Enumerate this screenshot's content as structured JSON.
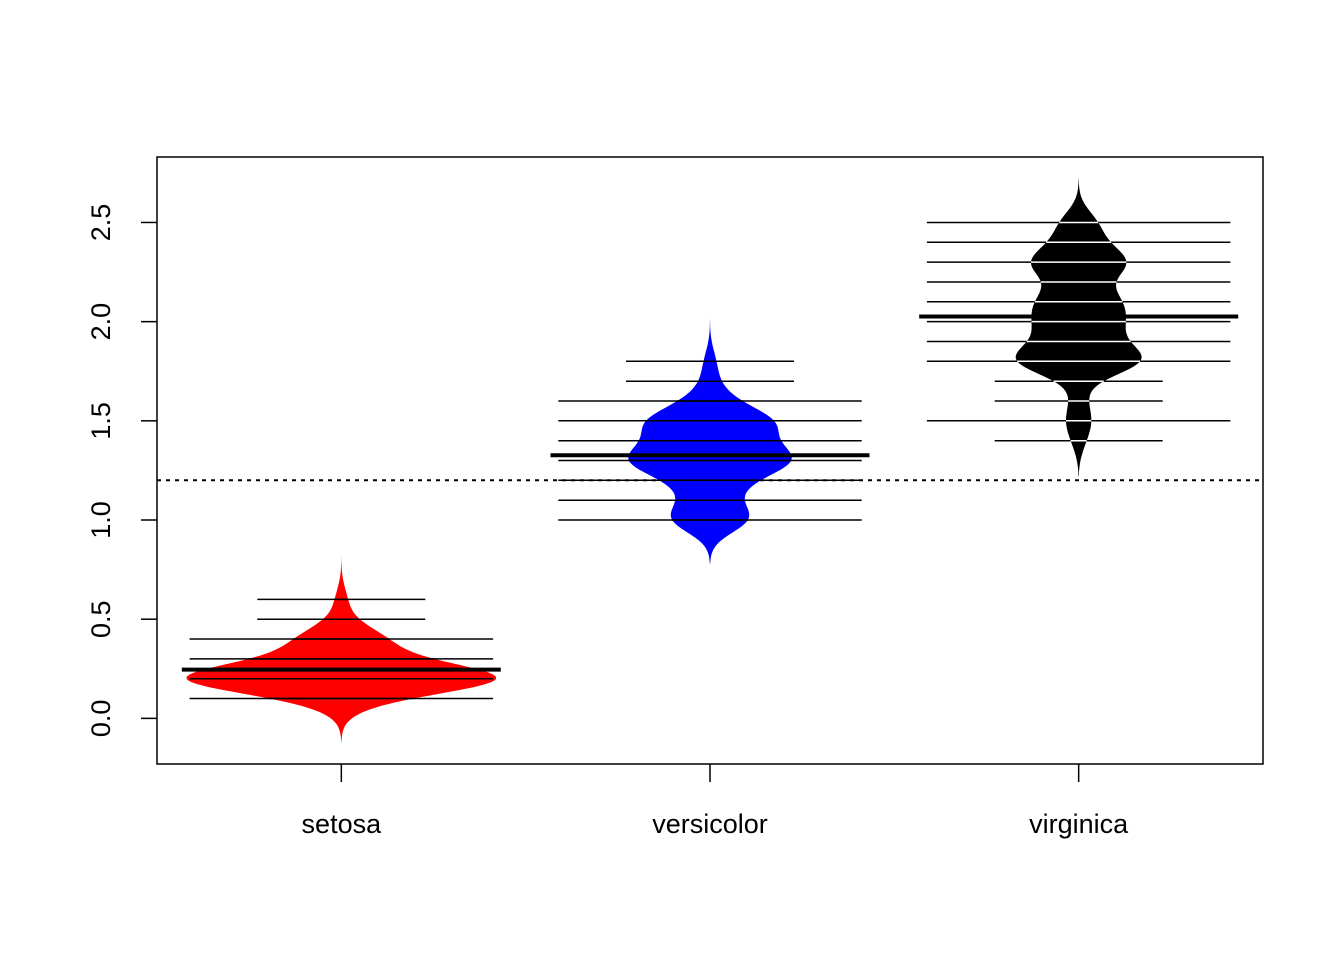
{
  "chart_data": {
    "type": "beanplot",
    "title": "",
    "xlabel": "",
    "ylabel": "",
    "ylim": [
      -0.23,
      2.83
    ],
    "y_ticks": [
      0.0,
      0.5,
      1.0,
      1.5,
      2.0,
      2.5
    ],
    "y_tick_labels": [
      "0.0",
      "0.5",
      "1.0",
      "1.5",
      "2.0",
      "2.5"
    ],
    "overall_mean": 1.2,
    "categories": [
      "setosa",
      "versicolor",
      "virginica"
    ],
    "beans": [
      {
        "category": "setosa",
        "color": "#ff0000",
        "mean": 0.246,
        "range": [
          -0.12,
          0.82
        ],
        "observations": [
          {
            "value": 0.1,
            "count": 5
          },
          {
            "value": 0.2,
            "count": 29
          },
          {
            "value": 0.3,
            "count": 7
          },
          {
            "value": 0.4,
            "count": 7
          },
          {
            "value": 0.5,
            "count": 1
          },
          {
            "value": 0.6,
            "count": 1
          }
        ]
      },
      {
        "category": "versicolor",
        "color": "#0000ff",
        "mean": 1.326,
        "range": [
          0.78,
          2.02
        ],
        "observations": [
          {
            "value": 1.0,
            "count": 7
          },
          {
            "value": 1.1,
            "count": 3
          },
          {
            "value": 1.2,
            "count": 5
          },
          {
            "value": 1.3,
            "count": 13
          },
          {
            "value": 1.4,
            "count": 7
          },
          {
            "value": 1.5,
            "count": 10
          },
          {
            "value": 1.6,
            "count": 3
          },
          {
            "value": 1.7,
            "count": 1
          },
          {
            "value": 1.8,
            "count": 1
          }
        ]
      },
      {
        "category": "virginica",
        "color": "#000000",
        "mean": 2.026,
        "range": [
          1.22,
          2.72
        ],
        "observations": [
          {
            "value": 1.4,
            "count": 1
          },
          {
            "value": 1.5,
            "count": 2
          },
          {
            "value": 1.6,
            "count": 1
          },
          {
            "value": 1.7,
            "count": 1
          },
          {
            "value": 1.8,
            "count": 11
          },
          {
            "value": 1.9,
            "count": 5
          },
          {
            "value": 2.0,
            "count": 6
          },
          {
            "value": 2.1,
            "count": 6
          },
          {
            "value": 2.2,
            "count": 3
          },
          {
            "value": 2.3,
            "count": 8
          },
          {
            "value": 2.4,
            "count": 3
          },
          {
            "value": 2.5,
            "count": 3
          }
        ]
      }
    ]
  }
}
